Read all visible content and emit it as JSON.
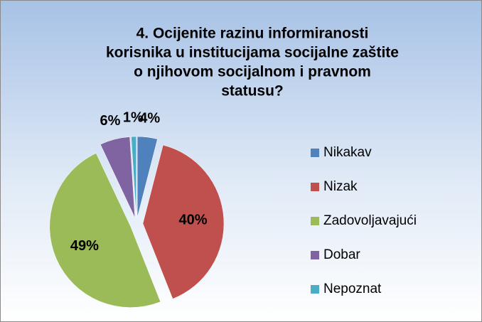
{
  "chart_data": {
    "type": "pie",
    "title": [
      "4. Ocijenite razinu informiranosti",
      "korisnika u institucijama socijalne zaštite",
      "o njihovom socijalnom i pravnom",
      "statusu?"
    ],
    "categories": [
      "Nikakav",
      "Nizak",
      "Zadovoljavajući",
      "Dobar",
      "Nepoznat"
    ],
    "values": [
      4,
      40,
      49,
      6,
      1
    ],
    "value_labels": [
      "4%",
      "40%",
      "49%",
      "6%",
      "1%"
    ],
    "colors": [
      "#4f81bd",
      "#c0504d",
      "#9bbb59",
      "#8064a2",
      "#4bacc6"
    ],
    "legend": "right"
  }
}
